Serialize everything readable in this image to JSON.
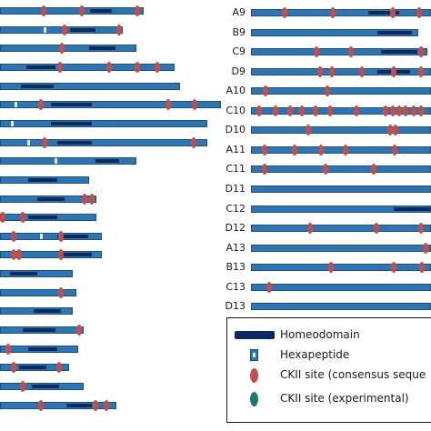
{
  "colors": {
    "bar": "#2e75b6",
    "bar_border": "#1f4e79",
    "homeodomain": "#0b2a5e",
    "hexapeptide": "#dce9f7",
    "ckii_consensus": "#c0504d",
    "ckii_experimental": "#1f7a6e"
  },
  "left_proteins": [
    {
      "end": 158,
      "hd": [
        98,
        122
      ],
      "hex": [
        46
      ],
      "ck": [
        47,
        89,
        150
      ]
    },
    {
      "end": 135,
      "hd": [
        76,
        104
      ],
      "hex": [
        48
      ],
      "ck": [
        70,
        130
      ]
    },
    {
      "end": 150,
      "hd": [
        97,
        126
      ],
      "hex": [],
      "ck": [
        67
      ]
    },
    {
      "end": 192,
      "hd": [
        28,
        60
      ],
      "hex": [],
      "ck": [
        65,
        119,
        150,
        172
      ]
    },
    {
      "end": 198,
      "hd": [
        22,
        58
      ],
      "hex": [],
      "ck": []
    },
    {
      "end": 243,
      "hd": [
        55,
        100
      ],
      "hex": [
        16
      ],
      "ck": [
        44,
        184,
        213
      ]
    },
    {
      "end": 228,
      "hd": [
        55,
        100
      ],
      "hex": [
        12
      ],
      "ck": []
    },
    {
      "end": 228,
      "hd": [
        62,
        100
      ],
      "hex": [
        30
      ],
      "ck": [
        48,
        212
      ]
    },
    {
      "end": 150,
      "hd": [
        104,
        130
      ],
      "hex": [
        60
      ],
      "ck": []
    },
    {
      "end": 98,
      "hd": [
        30,
        62
      ],
      "hex": [],
      "ck": []
    },
    {
      "end": 106,
      "hd": [
        40,
        70
      ],
      "hex": [],
      "ck": [
        92,
        100
      ]
    },
    {
      "end": 106,
      "hd": [
        30,
        62
      ],
      "hex": [],
      "ck": [
        2,
        24
      ]
    },
    {
      "end": 112,
      "hd": [
        62,
        96
      ],
      "hex": [
        44
      ],
      "ck": [
        14,
        66
      ]
    },
    {
      "end": 112,
      "hd": [
        68,
        100
      ],
      "hex": [],
      "ck": [
        14,
        20,
        66
      ]
    },
    {
      "end": 80,
      "hd": [
        10,
        40
      ],
      "hex": [],
      "ck": []
    },
    {
      "end": 84,
      "hd": [],
      "hex": [],
      "ck": [
        66
      ]
    },
    {
      "end": 80,
      "hd": [
        36,
        66
      ],
      "hex": [],
      "ck": []
    },
    {
      "end": 92,
      "hd": [
        24,
        60
      ],
      "hex": [],
      "ck": [
        86
      ]
    },
    {
      "end": 86,
      "hd": [
        30,
        62
      ],
      "hex": [],
      "ck": [
        8
      ]
    },
    {
      "end": 76,
      "hd": [
        20,
        50
      ],
      "hex": [],
      "ck": [
        14,
        64
      ]
    },
    {
      "end": 92,
      "hd": [
        34,
        64
      ],
      "hex": [],
      "ck": [
        24
      ]
    },
    {
      "end": 128,
      "hd": [
        72,
        100
      ],
      "hex": [],
      "ck": [
        44,
        104,
        116
      ]
    }
  ],
  "right_proteins": [
    {
      "name": "A9",
      "end": 474,
      "hd": [
        404,
        438
      ],
      "hex": [],
      "ck": [
        312,
        365,
        431,
        460
      ]
    },
    {
      "name": "B9",
      "end": 460,
      "hd": [
        414,
        452
      ],
      "hex": [],
      "ck": []
    },
    {
      "name": "C9",
      "end": 470,
      "hd": [
        418,
        458
      ],
      "hex": [],
      "ck": [
        347,
        385,
        462
      ]
    },
    {
      "name": "D9",
      "end": 474,
      "hd": [
        414,
        450
      ],
      "hex": [],
      "ck": [
        351,
        364,
        397,
        432,
        462
      ]
    },
    {
      "name": "A10",
      "end": 474,
      "hd": [],
      "hex": [],
      "ck": [
        291,
        359
      ]
    },
    {
      "name": "C10",
      "end": 474,
      "hd": [],
      "hex": [],
      "ck": [
        284,
        302,
        318,
        331,
        346,
        362,
        391,
        423,
        431,
        438,
        445,
        454,
        462
      ]
    },
    {
      "name": "D10",
      "end": 474,
      "hd": [],
      "hex": [],
      "ck": [
        338,
        428,
        434
      ]
    },
    {
      "name": "A11",
      "end": 474,
      "hd": [],
      "hex": [],
      "ck": [
        290,
        323,
        352,
        379,
        433
      ]
    },
    {
      "name": "C11",
      "end": 474,
      "hd": [],
      "hex": [],
      "ck": [
        290,
        357,
        410
      ]
    },
    {
      "name": "D11",
      "end": 474,
      "hd": [],
      "hex": [],
      "ck": []
    },
    {
      "name": "C12",
      "end": 474,
      "hd": [
        432,
        472
      ],
      "hex": [],
      "ck": []
    },
    {
      "name": "D12",
      "end": 474,
      "hd": [],
      "hex": [],
      "ck": [
        340,
        413,
        462
      ]
    },
    {
      "name": "A13",
      "end": 474,
      "hd": [],
      "hex": [],
      "ck": [
        467
      ]
    },
    {
      "name": "B13",
      "end": 474,
      "hd": [],
      "hex": [],
      "ck": [
        363,
        432,
        463
      ]
    },
    {
      "name": "C13",
      "end": 474,
      "hd": [],
      "hex": [],
      "ck": [
        295
      ]
    },
    {
      "name": "D13",
      "end": 474,
      "hd": [],
      "hex": [],
      "ck": []
    }
  ],
  "legend": {
    "homeodomain_label": "Homeodomain",
    "hexapeptide_label": "Hexapeptide",
    "ckii_consensus_label": "CKII site (consensus seque",
    "ckii_experimental_label": "CKII site (experimental)"
  }
}
